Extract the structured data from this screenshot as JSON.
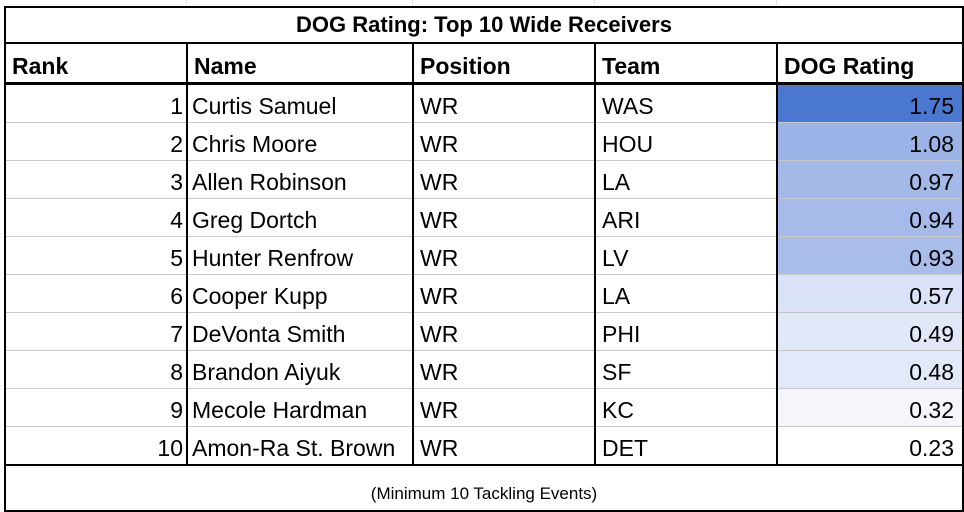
{
  "table": {
    "title": "DOG Rating: Top 10 Wide Receivers",
    "headers": [
      "Rank",
      "Name",
      "Position",
      "Team",
      "DOG Rating"
    ],
    "rows": [
      {
        "rank": "1",
        "name": "Curtis Samuel",
        "position": "WR",
        "team": "WAS",
        "rating": "1.75",
        "fill": "#4a78d0"
      },
      {
        "rank": "2",
        "name": "Chris Moore",
        "position": "WR",
        "team": "HOU",
        "rating": "1.08",
        "fill": "#9bb3e6"
      },
      {
        "rank": "3",
        "name": "Allen Robinson",
        "position": "WR",
        "team": "LA",
        "rating": "0.97",
        "fill": "#a3b9e8"
      },
      {
        "rank": "4",
        "name": "Greg Dortch",
        "position": "WR",
        "team": "ARI",
        "rating": "0.94",
        "fill": "#a6bbe9"
      },
      {
        "rank": "5",
        "name": "Hunter Renfrow",
        "position": "WR",
        "team": "LV",
        "rating": "0.93",
        "fill": "#a8bde9"
      },
      {
        "rank": "6",
        "name": "Cooper Kupp",
        "position": "WR",
        "team": "LA",
        "rating": "0.57",
        "fill": "#d9e2f6"
      },
      {
        "rank": "7",
        "name": "DeVonta Smith",
        "position": "WR",
        "team": "PHI",
        "rating": "0.49",
        "fill": "#e1e8f8"
      },
      {
        "rank": "8",
        "name": "Brandon Aiyuk",
        "position": "WR",
        "team": "SF",
        "rating": "0.48",
        "fill": "#e2e9f8"
      },
      {
        "rank": "9",
        "name": "Mecole Hardman",
        "position": "WR",
        "team": "KC",
        "rating": "0.32",
        "fill": "#f4f6fc"
      },
      {
        "rank": "10",
        "name": "Amon-Ra St. Brown",
        "position": "WR",
        "team": "DET",
        "rating": "0.23",
        "fill": "#ffffff"
      }
    ],
    "footer": "(Minimum 10 Tackling Events)"
  }
}
